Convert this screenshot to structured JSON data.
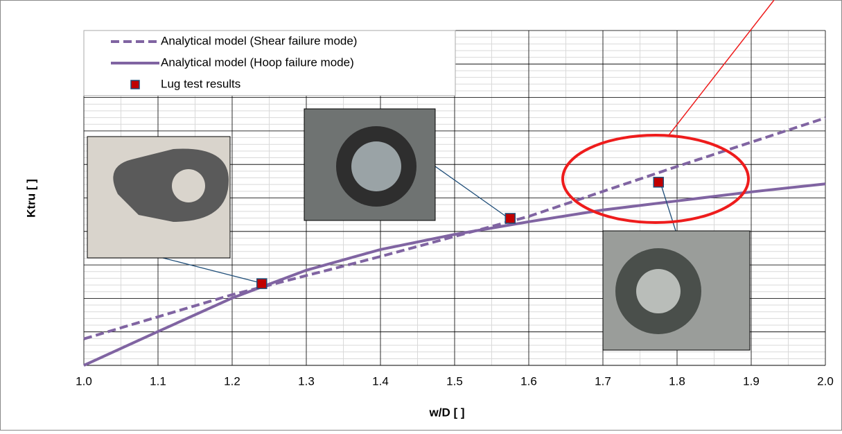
{
  "chart_data": {
    "type": "line",
    "xlabel": "w/D [ ]",
    "ylabel": "Ktru [ ]",
    "xlim": [
      1.0,
      2.0
    ],
    "xticks": [
      {
        "value": 1.0,
        "label": "1.0"
      },
      1.1,
      1.2,
      1.3,
      1.4,
      1.5,
      1.6,
      1.7,
      1.8,
      1.9,
      {
        "value": 2.0,
        "label": "2.0"
      }
    ],
    "ylim": [
      0,
      10
    ],
    "grid": true,
    "legend": "upper left",
    "series": [
      {
        "name": "Analytical model (Shear failure mode)",
        "color": "#8064a2",
        "style": "dashed",
        "x": [
          1.0,
          1.2,
          1.4,
          1.6,
          1.8,
          2.0
        ],
        "values": [
          0.79,
          2.11,
          3.25,
          4.45,
          5.94,
          7.39
        ]
      },
      {
        "name": "Analytical model (Hoop failure mode)",
        "color": "#8064a2",
        "style": "solid",
        "x": [
          1.0,
          1.1,
          1.2,
          1.3,
          1.4,
          1.5,
          1.6,
          1.7,
          1.8,
          1.9,
          2.0
        ],
        "values": [
          0,
          1.01,
          2.01,
          2.84,
          3.46,
          3.91,
          4.29,
          4.64,
          4.91,
          5.18,
          5.42
        ]
      },
      {
        "name": "Lug test results",
        "color": "#c00000",
        "style": "marker",
        "x": [
          1.24,
          1.575,
          1.775
        ],
        "values": [
          2.44,
          4.39,
          5.47
        ]
      }
    ]
  }
}
